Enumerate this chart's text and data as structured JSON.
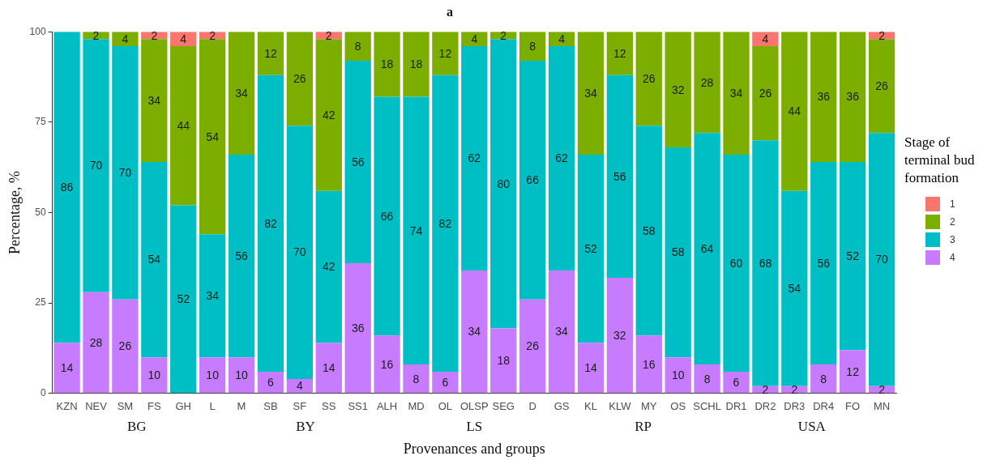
{
  "chart_data": {
    "type": "bar",
    "stacked": true,
    "title": "a",
    "xlabel": "Provenances and groups",
    "ylabel": "Percentage, %",
    "legend_title": "Stage of terminal bud formation",
    "legend": "right",
    "grid": false,
    "categories": [
      "KZN",
      "NEV",
      "SM",
      "FS",
      "GH",
      "L",
      "M",
      "SB",
      "SF",
      "SS",
      "SS1",
      "ALH",
      "MD",
      "OL",
      "OLSP",
      "SEG",
      "D",
      "GS",
      "KL",
      "KLW",
      "MY",
      "OS",
      "SCHL",
      "DR1",
      "DR2",
      "DR3",
      "DR4",
      "FO",
      "MN"
    ],
    "ylim": [
      0,
      100
    ],
    "yticks": [
      0,
      25,
      50,
      75,
      100
    ],
    "series": [
      {
        "name": "4",
        "color": "#c77cff",
        "values": [
          14,
          28,
          26,
          10,
          0,
          10,
          10,
          6,
          4,
          14,
          36,
          16,
          8,
          6,
          34,
          18,
          26,
          34,
          14,
          32,
          16,
          10,
          8,
          6,
          2,
          2,
          8,
          12,
          2
        ],
        "value_labels": [
          "14",
          "28",
          "26",
          "10",
          null,
          "10",
          "10",
          "6",
          "4",
          "14",
          "36",
          "16",
          "8",
          "6",
          "34",
          "18",
          "26",
          "34",
          "14",
          "32",
          "16",
          "10",
          "8",
          "6",
          "2",
          "2",
          "8",
          "12",
          "2"
        ]
      },
      {
        "name": "3",
        "color": "#00bfc4",
        "values": [
          86,
          70,
          70,
          54,
          52,
          34,
          56,
          82,
          70,
          42,
          56,
          66,
          74,
          82,
          62,
          80,
          66,
          62,
          52,
          56,
          58,
          58,
          64,
          60,
          68,
          54,
          56,
          52,
          70
        ],
        "value_labels": [
          "86",
          "70",
          "70",
          "54",
          "52",
          "34",
          "56",
          "82",
          "70",
          "42",
          "56",
          "66",
          "74",
          "82",
          "62",
          "80",
          "66",
          "62",
          "52",
          "56",
          "58",
          "58",
          "64",
          "60",
          "68",
          "54",
          "56",
          "52",
          "70"
        ]
      },
      {
        "name": "2",
        "color": "#7cae00",
        "values": [
          0,
          2,
          4,
          34,
          44,
          54,
          34,
          12,
          26,
          42,
          8,
          18,
          18,
          12,
          4,
          2,
          8,
          4,
          34,
          12,
          26,
          32,
          28,
          34,
          26,
          44,
          36,
          36,
          26
        ],
        "value_labels": [
          null,
          "2",
          "4",
          "34",
          "44",
          "54",
          "34",
          "12",
          "26",
          "42",
          "8",
          "18",
          "18",
          "12",
          "4",
          "2",
          "8",
          "4",
          "34",
          "12",
          "26",
          "32",
          "28",
          "34",
          "26",
          "44",
          "36",
          "36",
          "26"
        ]
      },
      {
        "name": "1",
        "color": "#f8766d",
        "values": [
          0,
          0,
          0,
          2,
          4,
          2,
          0,
          0,
          0,
          2,
          0,
          0,
          0,
          0,
          0,
          0,
          0,
          0,
          0,
          0,
          0,
          0,
          0,
          0,
          4,
          0,
          0,
          0,
          2
        ],
        "value_labels": [
          null,
          null,
          null,
          "2",
          "4",
          "2",
          null,
          null,
          null,
          "2",
          null,
          null,
          null,
          null,
          null,
          null,
          null,
          null,
          null,
          null,
          null,
          null,
          null,
          null,
          "4",
          null,
          null,
          null,
          "2"
        ]
      }
    ],
    "annotations": [
      "BG",
      "BY",
      "LS",
      "RP",
      "USA"
    ]
  }
}
